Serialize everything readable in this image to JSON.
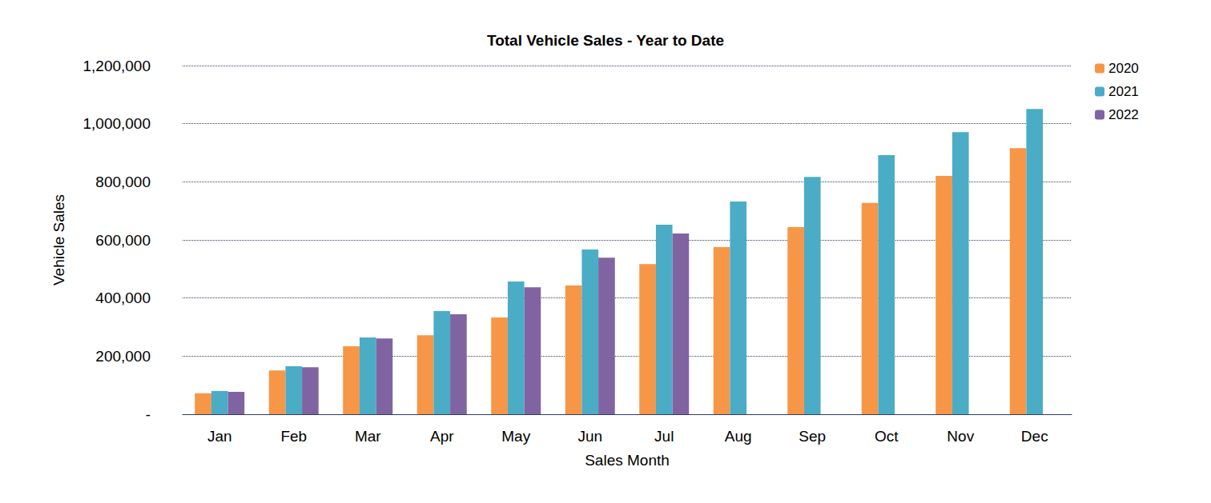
{
  "chart_data": {
    "type": "bar",
    "title": "Total Vehicle Sales - Year to Date",
    "x_label": "Sales Month",
    "y_label": "Vehicle Sales",
    "categories": [
      "Jan",
      "Feb",
      "Mar",
      "Apr",
      "May",
      "Jun",
      "Jul",
      "Aug",
      "Sep",
      "Oct",
      "Nov",
      "Dec"
    ],
    "series": [
      {
        "name": "2020",
        "color": "#F79646",
        "values": [
          72000,
          151000,
          234000,
          272000,
          333000,
          443000,
          517000,
          575000,
          644000,
          727000,
          820000,
          916000
        ]
      },
      {
        "name": "2021",
        "color": "#4BACC6",
        "values": [
          80000,
          165000,
          264000,
          355000,
          457000,
          567000,
          652000,
          732000,
          817000,
          892000,
          971000,
          1051000
        ]
      },
      {
        "name": "2022",
        "color": "#8064A2",
        "values": [
          77000,
          162000,
          261000,
          344000,
          437000,
          539000,
          622000,
          null,
          null,
          null,
          null,
          null
        ]
      }
    ],
    "ylim": [
      0,
      1200000
    ],
    "yticks": [
      {
        "value": 0,
        "label": "-"
      },
      {
        "value": 200000,
        "label": "200,000"
      },
      {
        "value": 400000,
        "label": "400,000"
      },
      {
        "value": 600000,
        "label": "600,000"
      },
      {
        "value": 800000,
        "label": "800,000"
      },
      {
        "value": 1000000,
        "label": "1,000,000"
      },
      {
        "value": 1200000,
        "label": "1,200,000"
      }
    ],
    "grid": true,
    "legend": "right"
  }
}
